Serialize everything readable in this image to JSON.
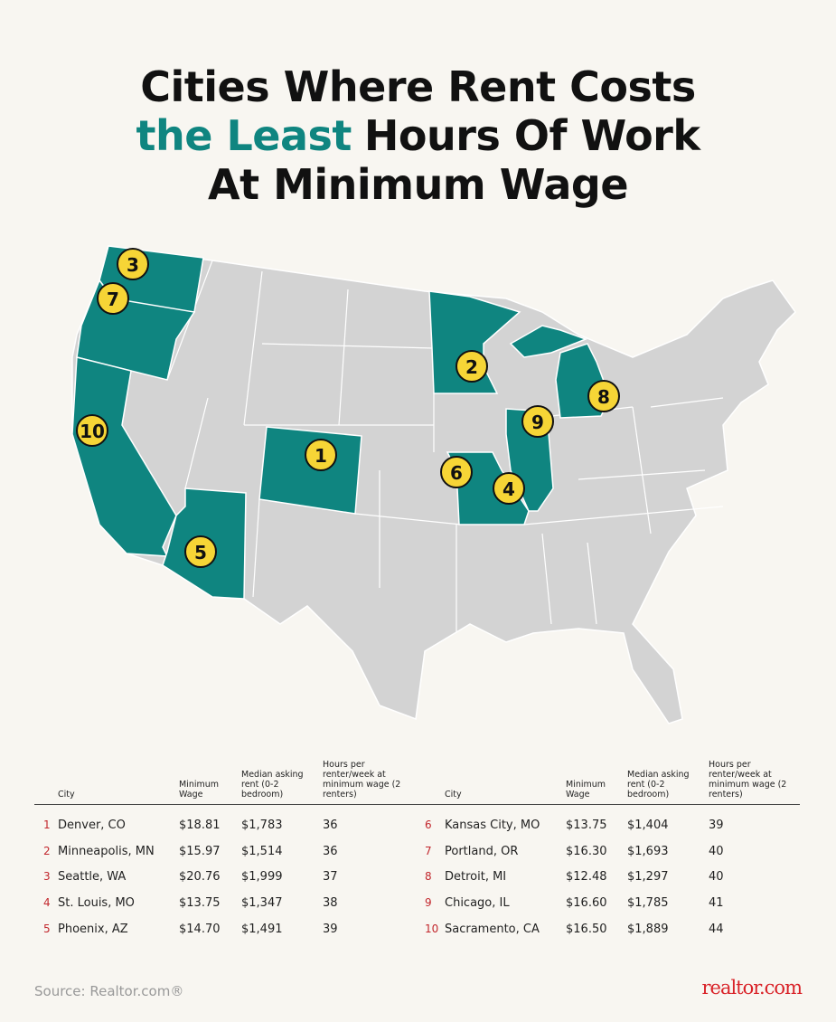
{
  "title": {
    "line1": "Cities Where Rent Costs",
    "line2_highlight": "the Least",
    "line2_rest": "Hours Of Work",
    "line3": "At Minimum Wage"
  },
  "map": {
    "markers": [
      "1",
      "2",
      "3",
      "4",
      "5",
      "6",
      "7",
      "8",
      "9",
      "10"
    ]
  },
  "table": {
    "headers": [
      "City",
      "Minimum Wage",
      "Median asking rent (0-2 bedroom)",
      "Hours per renter/week at minimum wage (2 renters)"
    ],
    "rows": [
      [
        "1",
        "Denver, CO",
        "$18.81",
        "$1,783",
        "36"
      ],
      [
        "2",
        "Minneapolis, MN",
        "$15.97",
        "$1,514",
        "36"
      ],
      [
        "3",
        "Seattle, WA",
        "$20.76",
        "$1,999",
        "37"
      ],
      [
        "4",
        "St. Louis, MO",
        "$13.75",
        "$1,347",
        "38"
      ],
      [
        "5",
        "Phoenix, AZ",
        "$14.70",
        "$1,491",
        "39"
      ],
      [
        "6",
        "Kansas City, MO",
        "$13.75",
        "$1,404",
        "39"
      ],
      [
        "7",
        "Portland, OR",
        "$16.30",
        "$1,693",
        "40"
      ],
      [
        "8",
        "Detroit, MI",
        "$12.48",
        "$1,297",
        "40"
      ],
      [
        "9",
        "Chicago, IL",
        "$16.60",
        "$1,785",
        "41"
      ],
      [
        "10",
        "Sacramento, CA",
        "$16.50",
        "$1,889",
        "44"
      ]
    ]
  },
  "footer": {
    "source": "Source: Realtor.com®",
    "logo": "realtor.com"
  }
}
